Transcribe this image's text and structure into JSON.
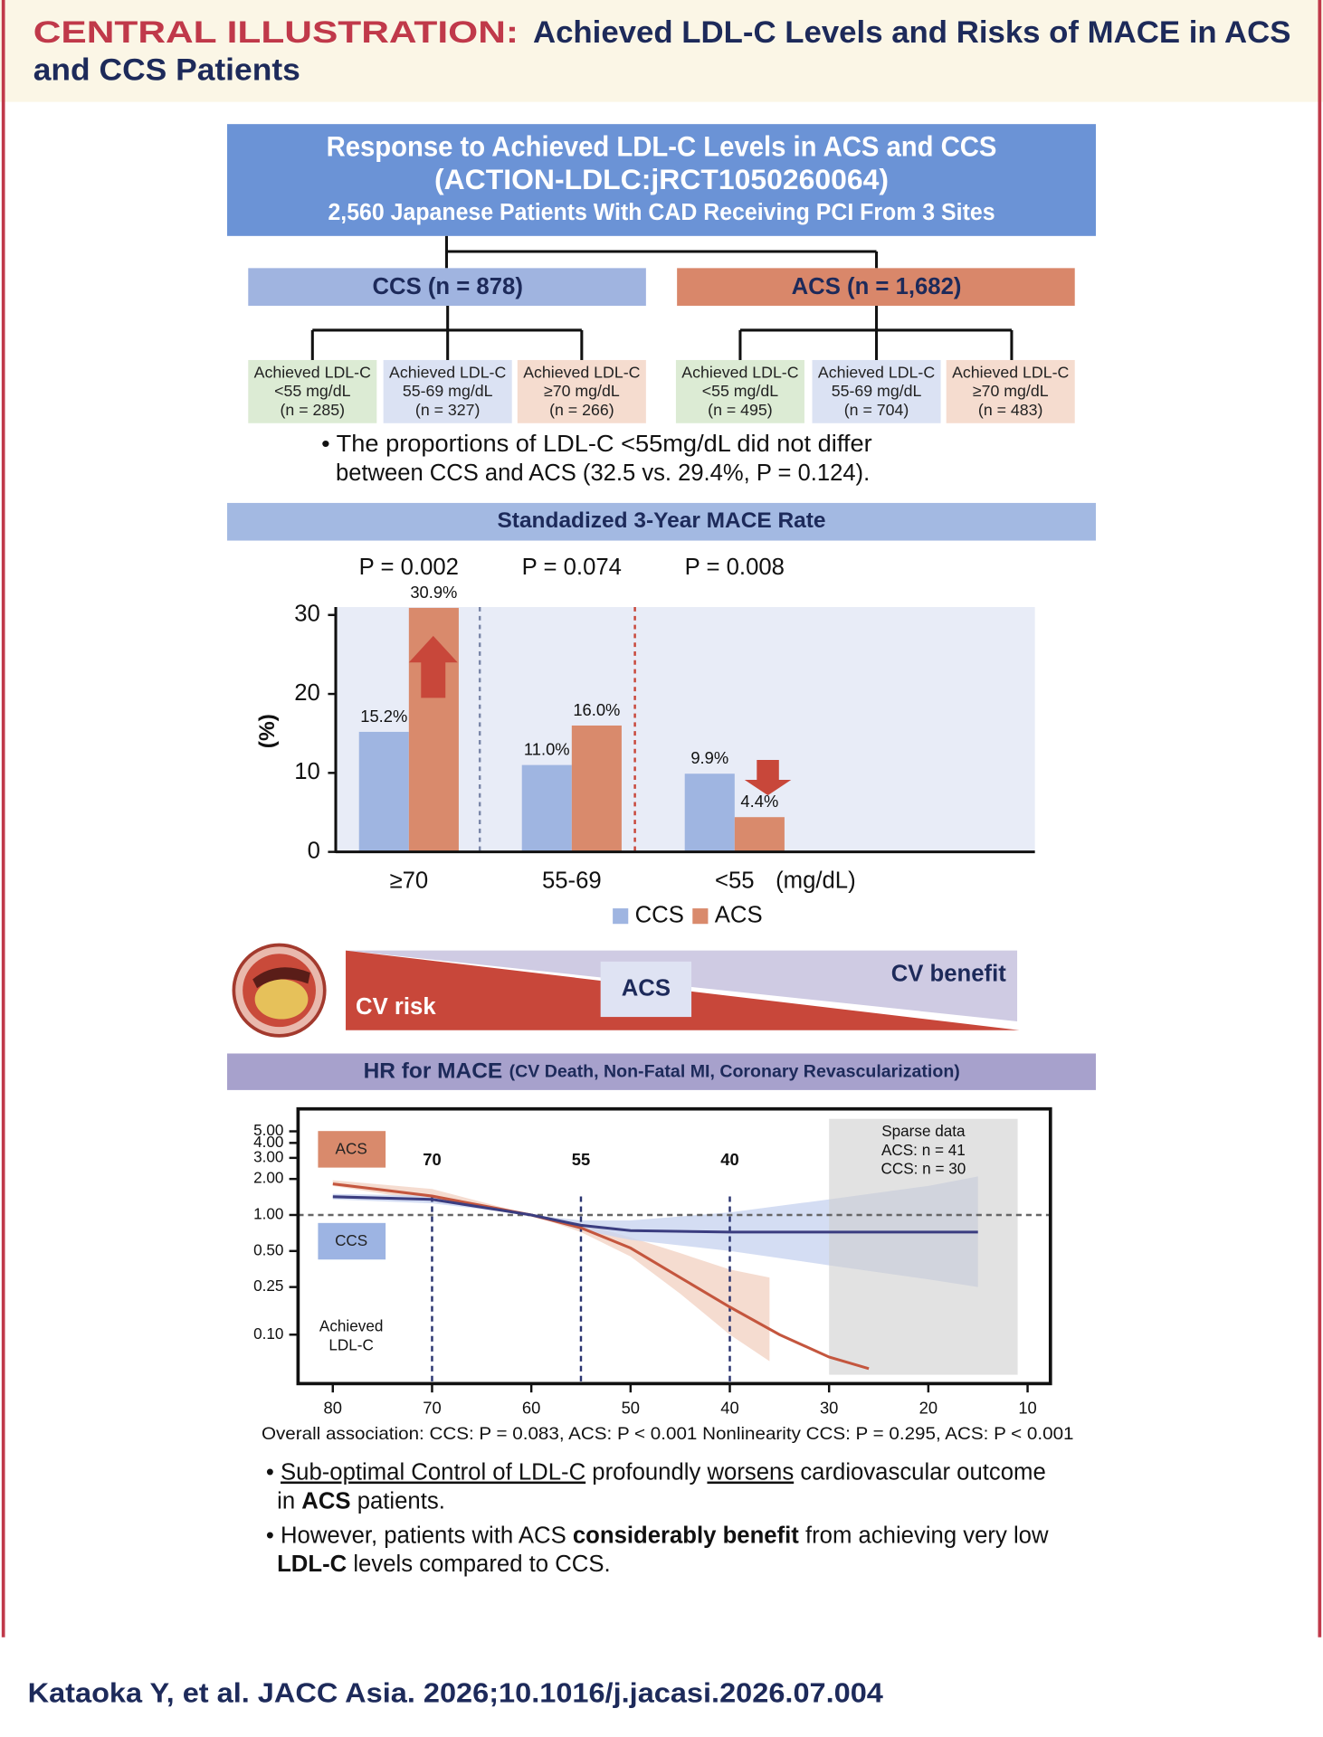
{
  "header": {
    "label": "CENTRAL ILLUSTRATION:",
    "title_lines": [
      "Achieved LDL-C Levels and Risks of MACE in ACS",
      "and CCS Patients"
    ]
  },
  "study": {
    "lines": [
      "Response to Achieved LDL-C Levels in ACS and CCS",
      "(ACTION-LDLC:jRCT1050260064)",
      "2,560 Japanese Patients With CAD Receiving PCI From 3 Sites"
    ]
  },
  "groups": [
    {
      "label": "CCS (n = 878)",
      "subgroups": [
        [
          "Achieved LDL-C",
          "<55 mg/dL",
          "(n = 285)"
        ],
        [
          "Achieved LDL-C",
          "55-69 mg/dL",
          "(n = 327)"
        ],
        [
          "Achieved LDL-C",
          "≥70 mg/dL",
          "(n = 266)"
        ]
      ]
    },
    {
      "label": "ACS (n = 1,682)",
      "subgroups": [
        [
          "Achieved LDL-C",
          "<55 mg/dL",
          "(n = 495)"
        ],
        [
          "Achieved LDL-C",
          "55-69 mg/dL",
          "(n = 704)"
        ],
        [
          "Achieved LDL-C",
          "≥70 mg/dL",
          "(n = 483)"
        ]
      ]
    }
  ],
  "note_lines": [
    "• The proportions of LDL-C <55mg/dL did not differ",
    "between CCS and ACS (32.5 vs. 29.4%, P = 0.124)."
  ],
  "chart_data": [
    {
      "type": "bar",
      "title": "Standadized 3-Year MACE Rate",
      "annotations": [
        "P = 0.002",
        "P = 0.074",
        "P = 0.008"
      ],
      "categories": [
        "≥70",
        "55-69",
        "<55"
      ],
      "x_unit": "(mg/dL)",
      "ylabel": "(%)",
      "ylim": [
        0,
        31
      ],
      "yticks": [
        0,
        10,
        20,
        30
      ],
      "background": "#e8ecf7",
      "series": [
        {
          "name": "CCS",
          "color": "#9fb5e1",
          "values": [
            15.2,
            11.0,
            9.9
          ],
          "value_labels": [
            "15.2%",
            "11.0%",
            "9.9%"
          ]
        },
        {
          "name": "ACS",
          "color": "#d98a6c",
          "values": [
            30.9,
            16.0,
            4.4
          ],
          "value_labels": [
            "30.9%",
            "16.0%",
            "4.4%"
          ]
        }
      ]
    },
    {
      "type": "line",
      "title": "HR for MACE",
      "subtitle": "(CV Death, Non-Fatal MI, Coronary Revascularization)",
      "axis_note": [
        "Achieved",
        "LDL-C"
      ],
      "xlim": [
        83.5,
        7.7
      ],
      "xticks": [
        80,
        70,
        60,
        50,
        40,
        30,
        20,
        10
      ],
      "ylim": [
        0.039,
        7.7
      ],
      "log_y": true,
      "yticks": [
        {
          "value": 5,
          "label": "5.00"
        },
        {
          "value": 4,
          "label": "4.00"
        },
        {
          "value": 3,
          "label": "3.00"
        },
        {
          "value": 2,
          "label": "2.00"
        },
        {
          "value": 1,
          "label": "1.00"
        },
        {
          "value": 0.5,
          "label": "0.50"
        },
        {
          "value": 0.25,
          "label": "0.25"
        },
        {
          "value": 0.1,
          "label": "0.10"
        }
      ],
      "ref_x": [
        70,
        55,
        40
      ],
      "ref_y": 1,
      "shade_x": [
        30,
        11
      ],
      "shade_text": [
        "Sparse data",
        "ACS: n = 41",
        "CCS: n = 30"
      ],
      "series": [
        {
          "name": "ACS",
          "color": "#c4563e",
          "band_color": "#f3d3c4",
          "legend_color": "#d98a6c",
          "x": [
            80,
            75,
            70,
            65,
            60,
            55,
            50,
            45,
            40,
            35,
            30,
            26
          ],
          "values": [
            1.82,
            1.62,
            1.44,
            1.2,
            1.0,
            0.78,
            0.53,
            0.3,
            0.17,
            0.1,
            0.065,
            0.052
          ],
          "ci_x": [
            80,
            70,
            60,
            55,
            50,
            45,
            40,
            36
          ],
          "ci_lower": [
            1.75,
            1.3,
            1.0,
            0.72,
            0.45,
            0.22,
            0.1,
            0.06
          ],
          "ci_upper": [
            1.95,
            1.65,
            1.0,
            0.85,
            0.65,
            0.48,
            0.35,
            0.3
          ]
        },
        {
          "name": "CCS",
          "color": "#3b3d80",
          "band_color": "#c9d5f0",
          "legend_color": "#9db4e3",
          "x": [
            80,
            70,
            60,
            55,
            50,
            40,
            30,
            15
          ],
          "values": [
            1.42,
            1.35,
            1.0,
            0.82,
            0.74,
            0.72,
            0.72,
            0.72
          ],
          "ci_x": [
            80,
            70,
            60,
            55,
            50,
            40,
            30,
            20,
            15
          ],
          "ci_lower": [
            1.35,
            1.25,
            1.0,
            0.75,
            0.62,
            0.5,
            0.38,
            0.29,
            0.25
          ],
          "ci_upper": [
            1.5,
            1.45,
            1.0,
            0.9,
            0.9,
            1.05,
            1.35,
            1.75,
            2.1
          ]
        }
      ]
    }
  ],
  "risk_banner": {
    "left": "CV risk",
    "center": "ACS",
    "right": "CV benefit"
  },
  "stats": "Overall association: CCS: P = 0.083,   ACS: P < 0.001  Nonlinearity CCS: P = 0.295,  ACS: P < 0.001",
  "conclusions": [
    [
      "• ",
      "Sub-optimal Control of LDL-C",
      " profoundly ",
      "worsens",
      " cardiovascular outcome"
    ],
    [
      "in ",
      "ACS",
      " patients."
    ],
    [
      "• However, patients with ACS ",
      "considerably benefit",
      "  from achieving very low"
    ],
    [
      "LDL-C",
      " levels compared to CCS."
    ]
  ],
  "citation": "Kataoka Y, et al. JACC Asia. 2026;10.1016/j.jacasi.2026.07.004"
}
